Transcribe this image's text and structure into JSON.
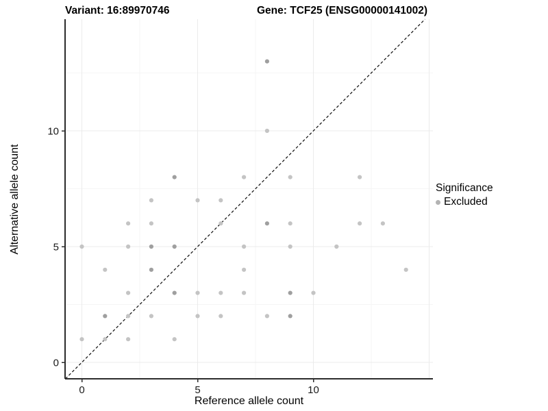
{
  "header": {
    "title_left": "Variant: 16:89970746",
    "title_right": "Gene: TCF25 (ENSG00000141002)"
  },
  "chart_data": {
    "type": "scatter",
    "title": "Variant: 16:89970746   Gene: TCF25 (ENSG00000141002)",
    "xlabel": "Reference allele count",
    "ylabel": "Alternative allele count",
    "xlim": [
      -0.75,
      15.05
    ],
    "ylim": [
      -0.7,
      14.8
    ],
    "x_ticks": [
      0,
      5,
      10
    ],
    "y_ticks": [
      0,
      5,
      10
    ],
    "x_major_gridlines": [
      0,
      5,
      10,
      15
    ],
    "x_minor_gridlines": [
      2.5,
      7.5,
      12.5
    ],
    "y_major_gridlines": [
      0,
      5,
      10
    ],
    "y_minor_gridlines": [
      2.5,
      7.5,
      12.5
    ],
    "grid": true,
    "legend_position": "right",
    "identity_line": {
      "style": "dashed",
      "from": [
        -0.71,
        -0.71
      ],
      "to": [
        14.82,
        14.82
      ]
    },
    "legend": {
      "title": "Significance",
      "items": [
        {
          "label": "Excluded",
          "color": "#b3b3b3"
        }
      ]
    },
    "series": [
      {
        "name": "Excluded",
        "points": [
          {
            "x": 8,
            "y": 13,
            "dark": true
          },
          {
            "x": 8,
            "y": 10,
            "dark": false
          },
          {
            "x": 4,
            "y": 8,
            "dark": true
          },
          {
            "x": 7,
            "y": 8,
            "dark": false
          },
          {
            "x": 9,
            "y": 8,
            "dark": false
          },
          {
            "x": 12,
            "y": 8,
            "dark": false
          },
          {
            "x": 3,
            "y": 7,
            "dark": false
          },
          {
            "x": 5,
            "y": 7,
            "dark": false
          },
          {
            "x": 6,
            "y": 7,
            "dark": false
          },
          {
            "x": 2,
            "y": 6,
            "dark": false
          },
          {
            "x": 3,
            "y": 6,
            "dark": false
          },
          {
            "x": 6,
            "y": 6,
            "dark": false
          },
          {
            "x": 8,
            "y": 6,
            "dark": true
          },
          {
            "x": 9,
            "y": 6,
            "dark": false
          },
          {
            "x": 12,
            "y": 6,
            "dark": false
          },
          {
            "x": 13,
            "y": 6,
            "dark": false
          },
          {
            "x": 0,
            "y": 5,
            "dark": false
          },
          {
            "x": 2,
            "y": 5,
            "dark": false
          },
          {
            "x": 3,
            "y": 5,
            "dark": true
          },
          {
            "x": 4,
            "y": 5,
            "dark": true
          },
          {
            "x": 7,
            "y": 5,
            "dark": false
          },
          {
            "x": 9,
            "y": 5,
            "dark": false
          },
          {
            "x": 11,
            "y": 5,
            "dark": false
          },
          {
            "x": 1,
            "y": 4,
            "dark": false
          },
          {
            "x": 3,
            "y": 4,
            "dark": true
          },
          {
            "x": 7,
            "y": 4,
            "dark": false
          },
          {
            "x": 14,
            "y": 4,
            "dark": false
          },
          {
            "x": 2,
            "y": 3,
            "dark": false
          },
          {
            "x": 4,
            "y": 3,
            "dark": true
          },
          {
            "x": 5,
            "y": 3,
            "dark": false
          },
          {
            "x": 6,
            "y": 3,
            "dark": false
          },
          {
            "x": 7,
            "y": 3,
            "dark": false
          },
          {
            "x": 9,
            "y": 3,
            "dark": true
          },
          {
            "x": 10,
            "y": 3,
            "dark": false
          },
          {
            "x": 1,
            "y": 2,
            "dark": true
          },
          {
            "x": 2,
            "y": 2,
            "dark": false
          },
          {
            "x": 3,
            "y": 2,
            "dark": false
          },
          {
            "x": 5,
            "y": 2,
            "dark": false
          },
          {
            "x": 6,
            "y": 2,
            "dark": false
          },
          {
            "x": 8,
            "y": 2,
            "dark": false
          },
          {
            "x": 9,
            "y": 2,
            "dark": true
          },
          {
            "x": 0,
            "y": 1,
            "dark": false
          },
          {
            "x": 1,
            "y": 1,
            "dark": false
          },
          {
            "x": 2,
            "y": 1,
            "dark": false
          },
          {
            "x": 4,
            "y": 1,
            "dark": false
          }
        ]
      }
    ]
  },
  "colors": {
    "background": "#ffffff",
    "point_light": "#c4c4c4",
    "point_dark": "#9f9f9f",
    "legend_dot": "#b3b3b3",
    "grid_major": "#ebebeb",
    "grid_minor": "#f5f5f5",
    "axis_line": "#2b2b2b",
    "dashed_line": "#1a1a1a",
    "tick_label": "#1a1a1a"
  }
}
